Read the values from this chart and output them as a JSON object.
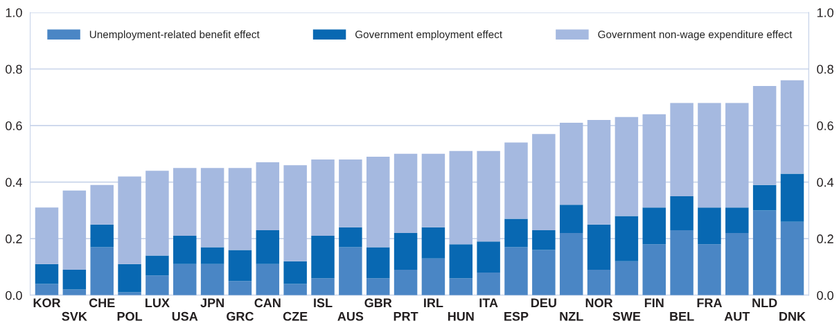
{
  "chart_data": {
    "type": "bar",
    "stacked": true,
    "categories": [
      "KOR",
      "SVK",
      "CHE",
      "POL",
      "LUX",
      "USA",
      "JPN",
      "GRC",
      "CAN",
      "CZE",
      "ISL",
      "AUS",
      "GBR",
      "PRT",
      "IRL",
      "HUN",
      "ITA",
      "ESP",
      "DEU",
      "NZL",
      "NOR",
      "SWE",
      "FIN",
      "BEL",
      "FRA",
      "AUT",
      "NLD",
      "DNK"
    ],
    "series": [
      {
        "name": "Unemployment-related benefit effect",
        "color": "#4a86c5",
        "values": [
          0.04,
          0.02,
          0.17,
          0.01,
          0.07,
          0.11,
          0.11,
          0.05,
          0.11,
          0.04,
          0.06,
          0.17,
          0.06,
          0.09,
          0.13,
          0.06,
          0.08,
          0.17,
          0.16,
          0.22,
          0.09,
          0.12,
          0.18,
          0.23,
          0.18,
          0.22,
          0.3,
          0.26
        ]
      },
      {
        "name": "Government employment effect",
        "color": "#0868b2",
        "values": [
          0.07,
          0.07,
          0.08,
          0.1,
          0.07,
          0.1,
          0.06,
          0.11,
          0.12,
          0.08,
          0.15,
          0.07,
          0.11,
          0.13,
          0.11,
          0.12,
          0.11,
          0.1,
          0.07,
          0.1,
          0.16,
          0.16,
          0.13,
          0.12,
          0.13,
          0.09,
          0.09,
          0.17
        ]
      },
      {
        "name": "Government non-wage expenditure effect",
        "color": "#a5b9e0",
        "values": [
          0.2,
          0.28,
          0.14,
          0.31,
          0.3,
          0.24,
          0.28,
          0.29,
          0.24,
          0.34,
          0.27,
          0.24,
          0.32,
          0.28,
          0.26,
          0.33,
          0.32,
          0.27,
          0.34,
          0.29,
          0.37,
          0.35,
          0.33,
          0.33,
          0.37,
          0.37,
          0.35,
          0.33
        ]
      }
    ],
    "ylim": [
      0,
      1.0
    ],
    "yticks": [
      {
        "value": 0,
        "label": "0.0"
      },
      0.2,
      0.4,
      0.6,
      0.8,
      {
        "value": 1,
        "label": "1.0"
      }
    ],
    "y2lim": [
      0,
      1.0
    ],
    "y2ticks": [
      {
        "value": 0,
        "label": "0.0"
      },
      0.2,
      0.4,
      0.6,
      0.8,
      {
        "value": 1,
        "label": "1.0"
      }
    ],
    "grid": "y",
    "legend": "top"
  }
}
